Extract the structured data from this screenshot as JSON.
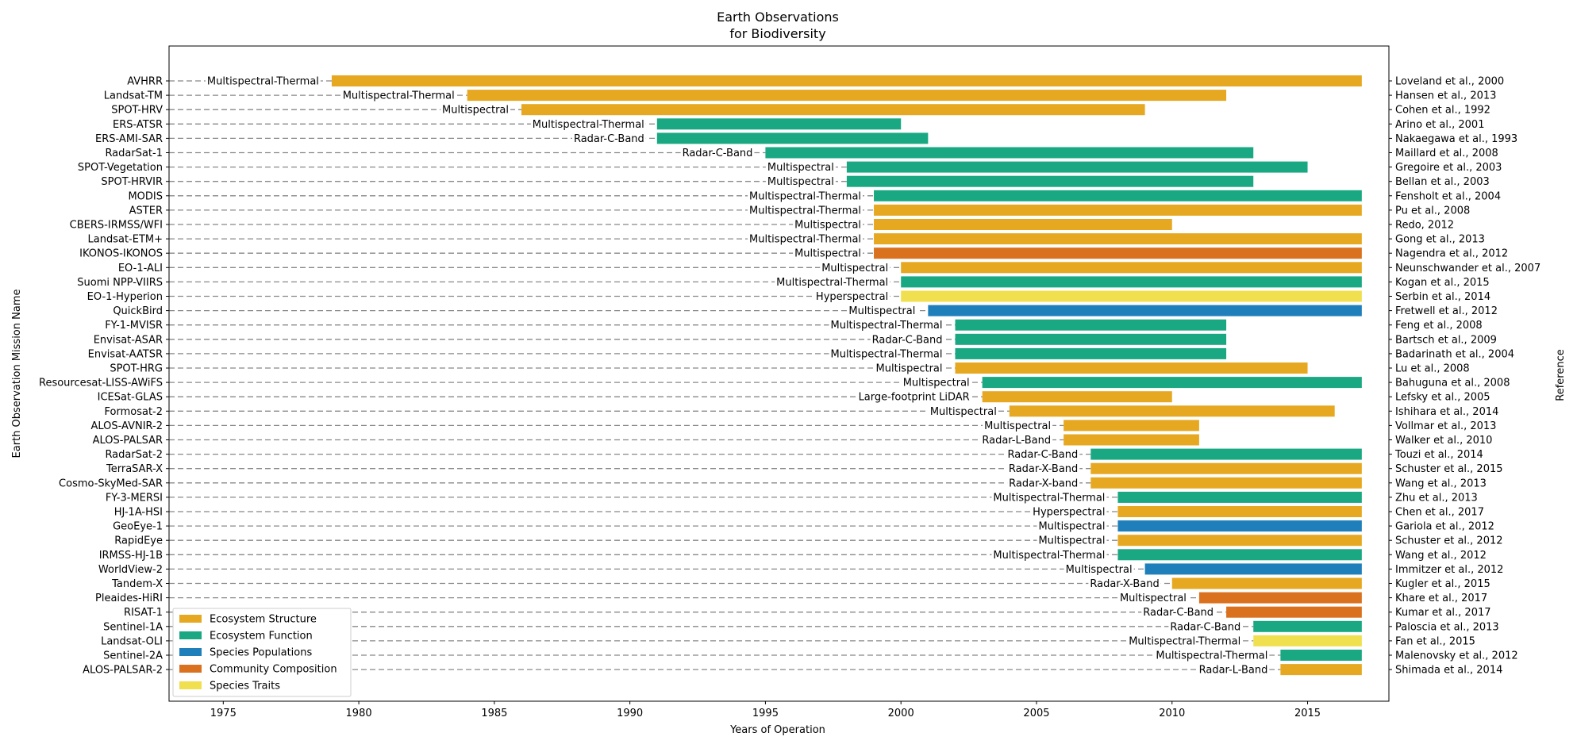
{
  "chart_data": {
    "type": "bar",
    "orientation": "horizontal-timeline",
    "title": [
      "Earth Observations",
      "for Biodiversity"
    ],
    "xlabel": "Years of Operation",
    "ylabel": "Earth Observation Mission Name",
    "ylabel_right": "Reference",
    "xlim": [
      1973,
      2018
    ],
    "xticks": [
      1975,
      1980,
      1985,
      1990,
      1995,
      2000,
      2005,
      2010,
      2015
    ],
    "grid": false,
    "legend_position": "lower-left",
    "legend": [
      {
        "name": "Ecosystem Structure",
        "color": "#e6a820"
      },
      {
        "name": "Ecosystem Function",
        "color": "#1aa882"
      },
      {
        "name": "Species Populations",
        "color": "#1e7fbb"
      },
      {
        "name": "Community Composition",
        "color": "#d9711f"
      },
      {
        "name": "Species Traits",
        "color": "#f0e050"
      }
    ],
    "categories": [
      "Ecosystem Structure",
      "Ecosystem Function",
      "Species Populations",
      "Community Composition",
      "Species Traits"
    ],
    "missions": [
      {
        "name": "AVHRR",
        "start": 1979,
        "end": 2017,
        "sensor": "Multispectral-Thermal",
        "category": 0,
        "reference": "Loveland et al., 2000"
      },
      {
        "name": "Landsat-TM",
        "start": 1984,
        "end": 2012,
        "sensor": "Multispectral-Thermal",
        "category": 0,
        "reference": "Hansen et al., 2013"
      },
      {
        "name": "SPOT-HRV",
        "start": 1986,
        "end": 2009,
        "sensor": "Multispectral",
        "category": 0,
        "reference": "Cohen et al., 1992"
      },
      {
        "name": "ERS-ATSR",
        "start": 1991,
        "end": 2000,
        "sensor": "Multispectral-Thermal",
        "category": 1,
        "reference": "Arino et al., 2001"
      },
      {
        "name": "ERS-AMI-SAR",
        "start": 1991,
        "end": 2001,
        "sensor": "Radar-C-Band",
        "category": 1,
        "reference": "Nakaegawa et al., 1993"
      },
      {
        "name": "RadarSat-1",
        "start": 1995,
        "end": 2013,
        "sensor": "Radar-C-Band",
        "category": 1,
        "reference": "Maillard et al., 2008"
      },
      {
        "name": "SPOT-Vegetation",
        "start": 1998,
        "end": 2015,
        "sensor": "Multispectral",
        "category": 1,
        "reference": "Gregoire et al., 2003"
      },
      {
        "name": "SPOT-HRVIR",
        "start": 1998,
        "end": 2013,
        "sensor": "Multispectral",
        "category": 1,
        "reference": "Bellan et al., 2003"
      },
      {
        "name": "MODIS",
        "start": 1999,
        "end": 2017,
        "sensor": "Multispectral-Thermal",
        "category": 1,
        "reference": "Fensholt et al., 2004"
      },
      {
        "name": "ASTER",
        "start": 1999,
        "end": 2017,
        "sensor": "Multispectral-Thermal",
        "category": 0,
        "reference": "Pu et al., 2008"
      },
      {
        "name": "CBERS-IRMSS/WFI",
        "start": 1999,
        "end": 2010,
        "sensor": "Multispectral",
        "category": 0,
        "reference": "Redo, 2012"
      },
      {
        "name": "Landsat-ETM+",
        "start": 1999,
        "end": 2017,
        "sensor": "Multispectral-Thermal",
        "category": 0,
        "reference": "Gong et al., 2013"
      },
      {
        "name": "IKONOS-IKONOS",
        "start": 1999,
        "end": 2017,
        "sensor": "Multispectral",
        "category": 3,
        "reference": "Nagendra et al., 2012"
      },
      {
        "name": "EO-1-ALI",
        "start": 2000,
        "end": 2017,
        "sensor": "Multispectral",
        "category": 0,
        "reference": "Neunschwander et al., 2007"
      },
      {
        "name": "Suomi NPP-VIIRS",
        "start": 2000,
        "end": 2017,
        "sensor": "Multispectral-Thermal",
        "category": 1,
        "reference": "Kogan et al., 2015"
      },
      {
        "name": "EO-1-Hyperion",
        "start": 2000,
        "end": 2017,
        "sensor": "Hyperspectral",
        "category": 4,
        "reference": "Serbin et al., 2014"
      },
      {
        "name": "QuickBird",
        "start": 2001,
        "end": 2017,
        "sensor": "Multispectral",
        "category": 2,
        "reference": "Fretwell et al., 2012"
      },
      {
        "name": "FY-1-MVISR",
        "start": 2002,
        "end": 2012,
        "sensor": "Multispectral-Thermal",
        "category": 1,
        "reference": "Feng et al., 2008"
      },
      {
        "name": "Envisat-ASAR",
        "start": 2002,
        "end": 2012,
        "sensor": "Radar-C-Band",
        "category": 1,
        "reference": "Bartsch et al., 2009"
      },
      {
        "name": "Envisat-AATSR",
        "start": 2002,
        "end": 2012,
        "sensor": "Multispectral-Thermal",
        "category": 1,
        "reference": "Badarinath et al., 2004"
      },
      {
        "name": "SPOT-HRG",
        "start": 2002,
        "end": 2015,
        "sensor": "Multispectral",
        "category": 0,
        "reference": "Lu et al., 2008"
      },
      {
        "name": "Resourcesat-LISS-AWiFS",
        "start": 2003,
        "end": 2017,
        "sensor": "Multispectral",
        "category": 1,
        "reference": "Bahuguna et al., 2008"
      },
      {
        "name": "ICESat-GLAS",
        "start": 2003,
        "end": 2010,
        "sensor": "Large-footprint LiDAR",
        "category": 0,
        "reference": "Lefsky et al., 2005"
      },
      {
        "name": "Formosat-2",
        "start": 2004,
        "end": 2016,
        "sensor": "Multispectral",
        "category": 0,
        "reference": "Ishihara et al., 2014"
      },
      {
        "name": "ALOS-AVNIR-2",
        "start": 2006,
        "end": 2011,
        "sensor": "Multispectral",
        "category": 0,
        "reference": "Vollmar et al., 2013"
      },
      {
        "name": "ALOS-PALSAR",
        "start": 2006,
        "end": 2011,
        "sensor": "Radar-L-Band",
        "category": 0,
        "reference": "Walker et al., 2010"
      },
      {
        "name": "RadarSat-2",
        "start": 2007,
        "end": 2017,
        "sensor": "Radar-C-Band",
        "category": 1,
        "reference": "Touzi et al., 2014"
      },
      {
        "name": "TerraSAR-X",
        "start": 2007,
        "end": 2017,
        "sensor": "Radar-X-Band",
        "category": 0,
        "reference": "Schuster et al., 2015"
      },
      {
        "name": "Cosmo-SkyMed-SAR",
        "start": 2007,
        "end": 2017,
        "sensor": "Radar-X-band",
        "category": 0,
        "reference": "Wang et al., 2013"
      },
      {
        "name": "FY-3-MERSI",
        "start": 2008,
        "end": 2017,
        "sensor": "Multispectral-Thermal",
        "category": 1,
        "reference": "Zhu et al., 2013"
      },
      {
        "name": "HJ-1A-HSI",
        "start": 2008,
        "end": 2017,
        "sensor": "Hyperspectral",
        "category": 0,
        "reference": "Chen et al., 2017"
      },
      {
        "name": "GeoEye-1",
        "start": 2008,
        "end": 2017,
        "sensor": "Multispectral",
        "category": 2,
        "reference": "Gariola et al., 2012"
      },
      {
        "name": "RapidEye",
        "start": 2008,
        "end": 2017,
        "sensor": "Multispectral",
        "category": 0,
        "reference": "Schuster et al., 2012"
      },
      {
        "name": "IRMSS-HJ-1B",
        "start": 2008,
        "end": 2017,
        "sensor": "Multispectral-Thermal",
        "category": 1,
        "reference": "Wang et al., 2012"
      },
      {
        "name": "WorldView-2",
        "start": 2009,
        "end": 2017,
        "sensor": "Multispectral",
        "category": 2,
        "reference": "Immitzer et al., 2012"
      },
      {
        "name": "Tandem-X",
        "start": 2010,
        "end": 2017,
        "sensor": "Radar-X-Band",
        "category": 0,
        "reference": "Kugler et al., 2015"
      },
      {
        "name": "Pleaides-HiRI",
        "start": 2011,
        "end": 2017,
        "sensor": "Multispectral",
        "category": 3,
        "reference": "Khare et al., 2017"
      },
      {
        "name": "RISAT-1",
        "start": 2012,
        "end": 2017,
        "sensor": "Radar-C-Band",
        "category": 3,
        "reference": "Kumar et al., 2017"
      },
      {
        "name": "Sentinel-1A",
        "start": 2013,
        "end": 2017,
        "sensor": "Radar-C-Band",
        "category": 1,
        "reference": "Paloscia et al., 2013"
      },
      {
        "name": "Landsat-OLI",
        "start": 2013,
        "end": 2017,
        "sensor": "Multispectral-Thermal",
        "category": 4,
        "reference": "Fan et al., 2015"
      },
      {
        "name": "Sentinel-2A",
        "start": 2014,
        "end": 2017,
        "sensor": "Multispectral-Thermal",
        "category": 1,
        "reference": "Malenovsky et al., 2012"
      },
      {
        "name": "ALOS-PALSAR-2",
        "start": 2014,
        "end": 2017,
        "sensor": "Radar-L-Band",
        "category": 0,
        "reference": "Shimada et al., 2014"
      }
    ]
  }
}
